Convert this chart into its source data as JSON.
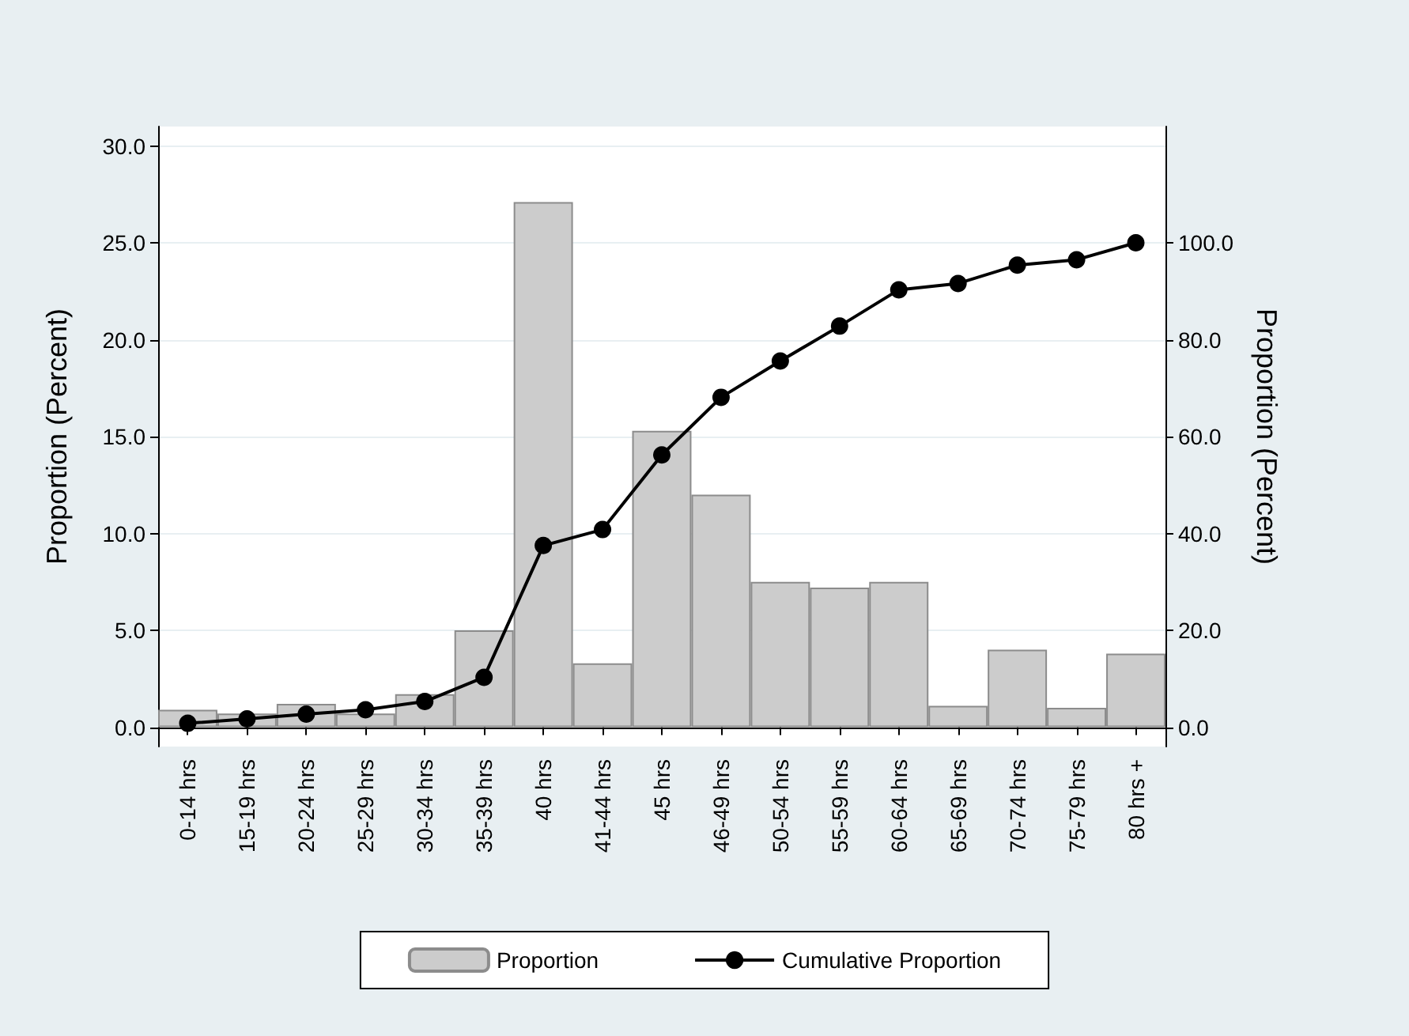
{
  "chart_data": {
    "type": "bar",
    "categories": [
      "0-14 hrs",
      "15-19 hrs",
      "20-24 hrs",
      "25-29 hrs",
      "30-34 hrs",
      "35-39 hrs",
      "40 hrs",
      "41-44 hrs",
      "45 hrs",
      "46-49 hrs",
      "50-54 hrs",
      "55-59 hrs",
      "60-64 hrs",
      "65-69 hrs",
      "70-74 hrs",
      "75-79 hrs",
      "80 hrs +"
    ],
    "series": [
      {
        "name": "Proportion",
        "color": "#cccccc",
        "values": [
          0.9,
          0.7,
          1.2,
          0.7,
          1.7,
          5.0,
          27.1,
          3.3,
          15.3,
          12.0,
          7.5,
          7.2,
          7.5,
          1.1,
          4.0,
          1.0,
          3.8
        ]
      },
      {
        "name": "Cumulative Proportion",
        "type": "line",
        "axis": "y2",
        "color": "#000000",
        "values": [
          0.8,
          1.7,
          2.7,
          3.6,
          5.3,
          10.3,
          37.5,
          40.8,
          56.2,
          68.1,
          75.6,
          82.8,
          90.3,
          91.6,
          95.4,
          96.5,
          100.0
        ]
      }
    ],
    "ylabel": "Proportion (Percent)",
    "y2label": "Proportion (Percent)",
    "ylim": [
      -1,
      31
    ],
    "yticks": [
      {
        "value": 0,
        "label": "0.0"
      },
      {
        "value": 5,
        "label": "5.0"
      },
      {
        "value": 10,
        "label": "10.0"
      },
      {
        "value": 15,
        "label": "15.0"
      },
      {
        "value": 20,
        "label": "20.0"
      },
      {
        "value": 25,
        "label": "25.0"
      },
      {
        "value": 30,
        "label": "30.0"
      }
    ],
    "y2lim": [
      -4,
      124
    ],
    "y2ticks": [
      {
        "value": 0,
        "label": "0.0"
      },
      {
        "value": 20,
        "label": "20.0"
      },
      {
        "value": 40,
        "label": "40.0"
      },
      {
        "value": 60,
        "label": "60.0"
      },
      {
        "value": 80,
        "label": "80.0"
      },
      {
        "value": 100,
        "label": "100.0"
      }
    ],
    "grid": "y",
    "legend": "bottom",
    "marker": "circle",
    "line_style": "solid"
  }
}
